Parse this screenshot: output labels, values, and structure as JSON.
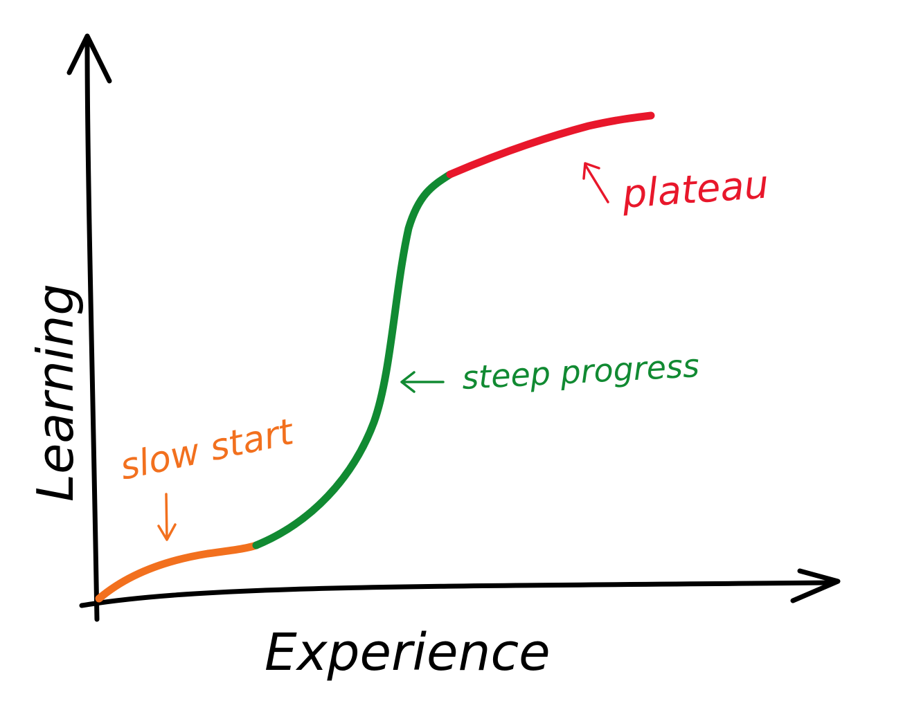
{
  "axes": {
    "y_label": "Learning",
    "x_label": "Experience"
  },
  "annotations": {
    "slow_start": "slow start",
    "steep_progress": "steep progress",
    "plateau": "plateau"
  },
  "colors": {
    "axis": "#000000",
    "slow_start": "#f2701e",
    "steep_progress": "#118a32",
    "plateau": "#e8172b"
  },
  "curve_phases": [
    "slow start",
    "steep progress",
    "plateau"
  ]
}
